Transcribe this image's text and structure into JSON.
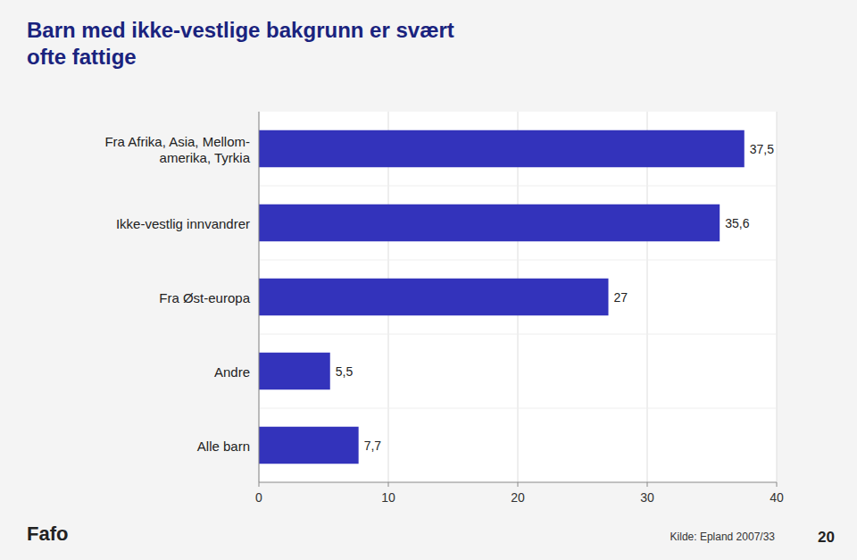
{
  "chart_data": {
    "type": "bar",
    "orientation": "horizontal",
    "title": "Barn med ikke-vestlige bakgrunn er svært\nofte fattige",
    "categories": [
      "Fra Afrika, Asia, Mellom-\namerika, Tyrkia",
      "Ikke-vestlig innvandrer",
      "Fra Øst-europa",
      "Andre",
      "Alle barn"
    ],
    "values": [
      37.5,
      35.6,
      27.0,
      5.5,
      7.7
    ],
    "value_labels": [
      "37,5",
      "35,6",
      "27",
      "5,5",
      "7,7"
    ],
    "data_labels": true,
    "color": "#3333BB",
    "xlim": [
      0,
      40
    ],
    "xticks": [
      0,
      10,
      20,
      30,
      40
    ],
    "grid": true,
    "annotations": [
      "Kilde: Epland 2007/33",
      "20",
      "Fafo"
    ]
  }
}
